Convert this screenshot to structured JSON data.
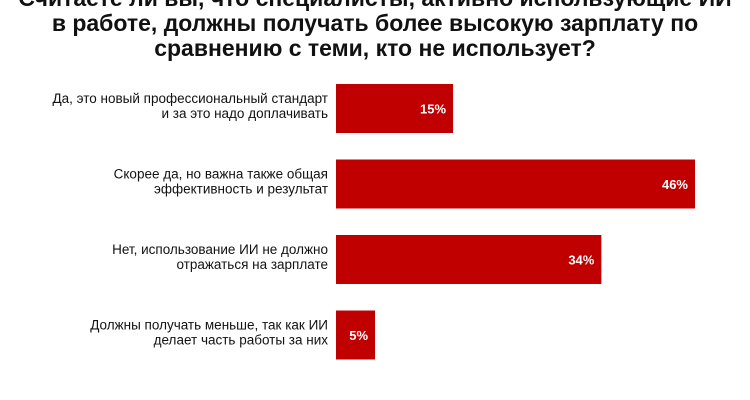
{
  "chart_data": {
    "type": "bar",
    "orientation": "horizontal",
    "title_lines": [
      "Считаете ли вы, что специалисты, активно использующие ИИ",
      "в работе, должны получать более высокую зарплату по",
      "сравнению с теми, кто не использует?"
    ],
    "categories": [
      [
        "Да, это новый профессиональный стандарт",
        "и за это надо доплачивать"
      ],
      [
        "Скорее да, но важна также общая",
        "эффективность и результат"
      ],
      [
        "Нет, использование ИИ не должно",
        "отражаться на зарплате"
      ],
      [
        "Должны получать меньше, так как ИИ",
        "делает часть работы за них"
      ]
    ],
    "values": [
      15,
      46,
      34,
      5
    ],
    "value_labels": [
      "15%",
      "46%",
      "34%",
      "5%"
    ],
    "xlim": [
      0,
      46
    ],
    "grid": false,
    "bar_color": "#c00000"
  }
}
